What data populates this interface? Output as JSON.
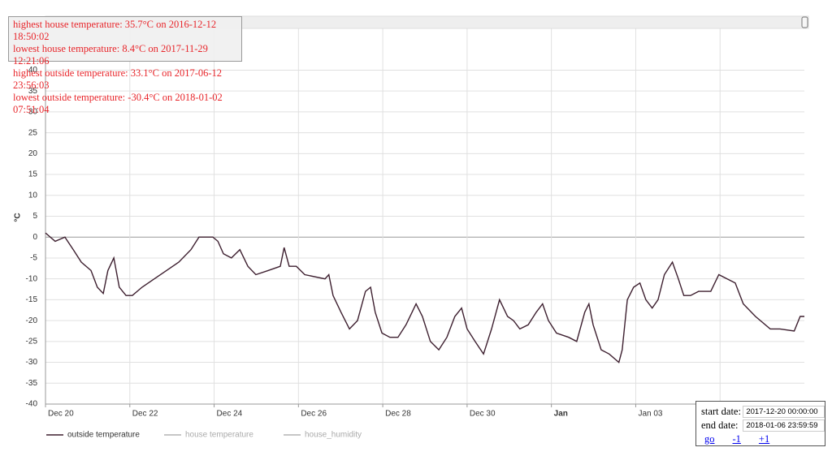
{
  "chart_data": {
    "type": "line",
    "y_label": "°C",
    "x": [
      0,
      0.23,
      0.46,
      0.66,
      0.85,
      1.08,
      1.23,
      1.37,
      1.48,
      1.62,
      1.75,
      1.91,
      2.06,
      2.29,
      2.58,
      2.87,
      3.16,
      3.45,
      3.64,
      3.97,
      4.09,
      4.22,
      4.41,
      4.61,
      4.8,
      4.99,
      5.28,
      5.57,
      5.66,
      5.78,
      5.95,
      6.15,
      6.63,
      6.72,
      6.82,
      7.01,
      7.21,
      7.4,
      7.59,
      7.71,
      7.82,
      7.98,
      8.17,
      8.36,
      8.55,
      8.79,
      8.94,
      9.13,
      9.33,
      9.52,
      9.71,
      9.87,
      10,
      10.19,
      10.39,
      10.58,
      10.77,
      10.96,
      11.1,
      11.25,
      11.45,
      11.64,
      11.79,
      11.93,
      12.12,
      12.41,
      12.6,
      12.79,
      12.89,
      12.99,
      13.18,
      13.37,
      13.6,
      13.68,
      13.8,
      13.95,
      14.1,
      14.24,
      14.39,
      14.53,
      14.68,
      14.87,
      15.01,
      15.14,
      15.3,
      15.49,
      15.78,
      15.97,
      16.17,
      16.36,
      16.55,
      16.84,
      17.19,
      17.42,
      17.76,
      17.9,
      18
    ],
    "series": [
      {
        "name": "outside temperature",
        "color": "#3d1f2f",
        "values": [
          1,
          -1,
          0,
          -3,
          -6,
          -8,
          -12,
          -13.5,
          -8,
          -5,
          -12,
          -14,
          -14,
          -12,
          -10,
          -8,
          -6,
          -3,
          0,
          0,
          -1,
          -4,
          -5,
          -3,
          -7,
          -9,
          -8,
          -7,
          -2.5,
          -7,
          -7,
          -9,
          -10,
          -9,
          -14,
          -18,
          -22,
          -20,
          -13,
          -12,
          -18,
          -23,
          -24,
          -24,
          -21,
          -16,
          -19,
          -25,
          -27,
          -24,
          -19,
          -17,
          -22,
          -25,
          -28,
          -22,
          -15,
          -19,
          -20,
          -22,
          -21,
          -18,
          -16,
          -20,
          -23,
          -24,
          -25,
          -18,
          -16,
          -21,
          -27,
          -28,
          -30,
          -27,
          -15,
          -12,
          -11,
          -15,
          -17,
          -15,
          -9,
          -6,
          -10,
          -14,
          -14,
          -13,
          -13,
          -9,
          -10,
          -11,
          -16,
          -19,
          -22,
          -22,
          -22.5,
          -19,
          -19
        ]
      },
      {
        "name": "house temperature",
        "color": "#b3b3b3",
        "hidden": true
      },
      {
        "name": "house_humidity",
        "color": "#b3b3b3",
        "hidden": true
      }
    ],
    "xlim": [
      0,
      18
    ],
    "xticks": [
      {
        "value": 0,
        "label": "Dec 20"
      },
      {
        "value": 2,
        "label": "Dec 22"
      },
      {
        "value": 4,
        "label": "Dec 24"
      },
      {
        "value": 6,
        "label": "Dec 26"
      },
      {
        "value": 8,
        "label": "Dec 28"
      },
      {
        "value": 10,
        "label": "Dec 30"
      },
      {
        "value": 12,
        "label": "Jan",
        "bold": true
      },
      {
        "value": 14,
        "label": "Jan 03"
      },
      {
        "value": 16
      }
    ],
    "ylim": [
      -40,
      50
    ],
    "yticks": [
      -40,
      -35,
      -30,
      -25,
      -20,
      -15,
      -10,
      -5,
      0,
      5,
      10,
      15,
      20,
      25,
      30,
      35,
      40
    ],
    "grid": true,
    "legend": "bottom"
  },
  "stats": [
    "highest house temperature: 35.7°C on 2016-12-12 18:50:02",
    "lowest house temperature: 8.4°C on 2017-11-29 12:21:06",
    "highest outside temperature: 33.1°C on 2017-06-12 23:56:03",
    "lowest outside temperature: -30.4°C on 2018-01-02 07:51:04"
  ],
  "controls": {
    "start_label": "start date:",
    "start_value": "2017-12-20 00:00:00",
    "end_label": "end date:",
    "end_value": "2018-01-06 23:59:59",
    "links": [
      "go",
      "-1",
      "+1"
    ]
  }
}
